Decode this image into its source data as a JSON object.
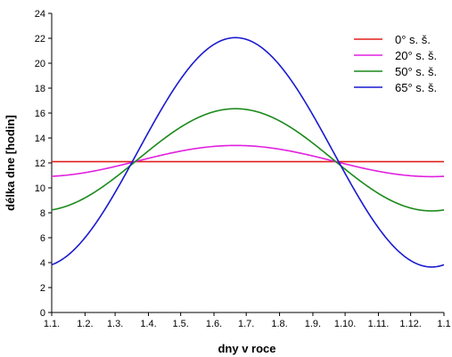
{
  "chart_data": {
    "type": "line",
    "xlabel": "dny v roce",
    "ylabel": "délka dne [hodin]",
    "xlim": [
      1,
      366
    ],
    "ylim": [
      0,
      24
    ],
    "y_ticks": [
      0,
      2,
      4,
      6,
      8,
      10,
      12,
      14,
      16,
      18,
      20,
      22,
      24
    ],
    "x_ticks": [
      {
        "day": 1,
        "label": "1.1."
      },
      {
        "day": 32,
        "label": "1.2."
      },
      {
        "day": 60,
        "label": "1.3."
      },
      {
        "day": 91,
        "label": "1.4."
      },
      {
        "day": 121,
        "label": "1.5."
      },
      {
        "day": 152,
        "label": "1.6."
      },
      {
        "day": 182,
        "label": "1.7."
      },
      {
        "day": 213,
        "label": "1.8."
      },
      {
        "day": 244,
        "label": "1.9."
      },
      {
        "day": 274,
        "label": "1.10."
      },
      {
        "day": 305,
        "label": "1.11."
      },
      {
        "day": 335,
        "label": "1.12."
      },
      {
        "day": 366,
        "label": "1.1"
      }
    ],
    "grid": false,
    "legend_position": "top-right",
    "series": [
      {
        "name": "0° s. š.",
        "color": "#e0201a",
        "mean": 12.1,
        "amplitude": 0.0,
        "x": [
          1,
          32,
          60,
          91,
          121,
          152,
          172,
          182,
          213,
          244,
          274,
          305,
          335,
          366
        ],
        "values": [
          12.1,
          12.1,
          12.1,
          12.1,
          12.1,
          12.1,
          12.1,
          12.1,
          12.1,
          12.1,
          12.1,
          12.1,
          12.1,
          12.1
        ]
      },
      {
        "name": "20° s. š.",
        "color": "#e020e0",
        "mean": 12.15,
        "amplitude": 1.25,
        "x": [
          1,
          32,
          60,
          91,
          121,
          152,
          172,
          182,
          213,
          244,
          274,
          305,
          335,
          366
        ],
        "values": [
          11.0,
          11.3,
          11.8,
          12.4,
          12.9,
          13.3,
          13.4,
          13.35,
          13.05,
          12.55,
          12.0,
          11.4,
          11.0,
          10.95
        ]
      },
      {
        "name": "50° s. š.",
        "color": "#1a8a1a",
        "mean": 12.25,
        "amplitude": 4.1,
        "x": [
          1,
          32,
          60,
          91,
          121,
          152,
          172,
          182,
          213,
          244,
          274,
          305,
          335,
          366
        ],
        "values": [
          8.2,
          9.2,
          10.9,
          12.7,
          14.5,
          16.0,
          16.35,
          16.3,
          15.4,
          13.8,
          11.9,
          10.0,
          8.4,
          8.2
        ]
      },
      {
        "name": "65° s. š.",
        "color": "#1a1ad0",
        "mean": 12.85,
        "amplitude": 9.2,
        "x": [
          1,
          32,
          60,
          91,
          121,
          152,
          172,
          182,
          213,
          244,
          274,
          305,
          335,
          366
        ],
        "values": [
          3.9,
          6.8,
          9.9,
          13.3,
          16.8,
          20.0,
          22.0,
          21.7,
          18.4,
          14.8,
          11.2,
          7.3,
          3.8,
          3.8
        ]
      }
    ]
  }
}
